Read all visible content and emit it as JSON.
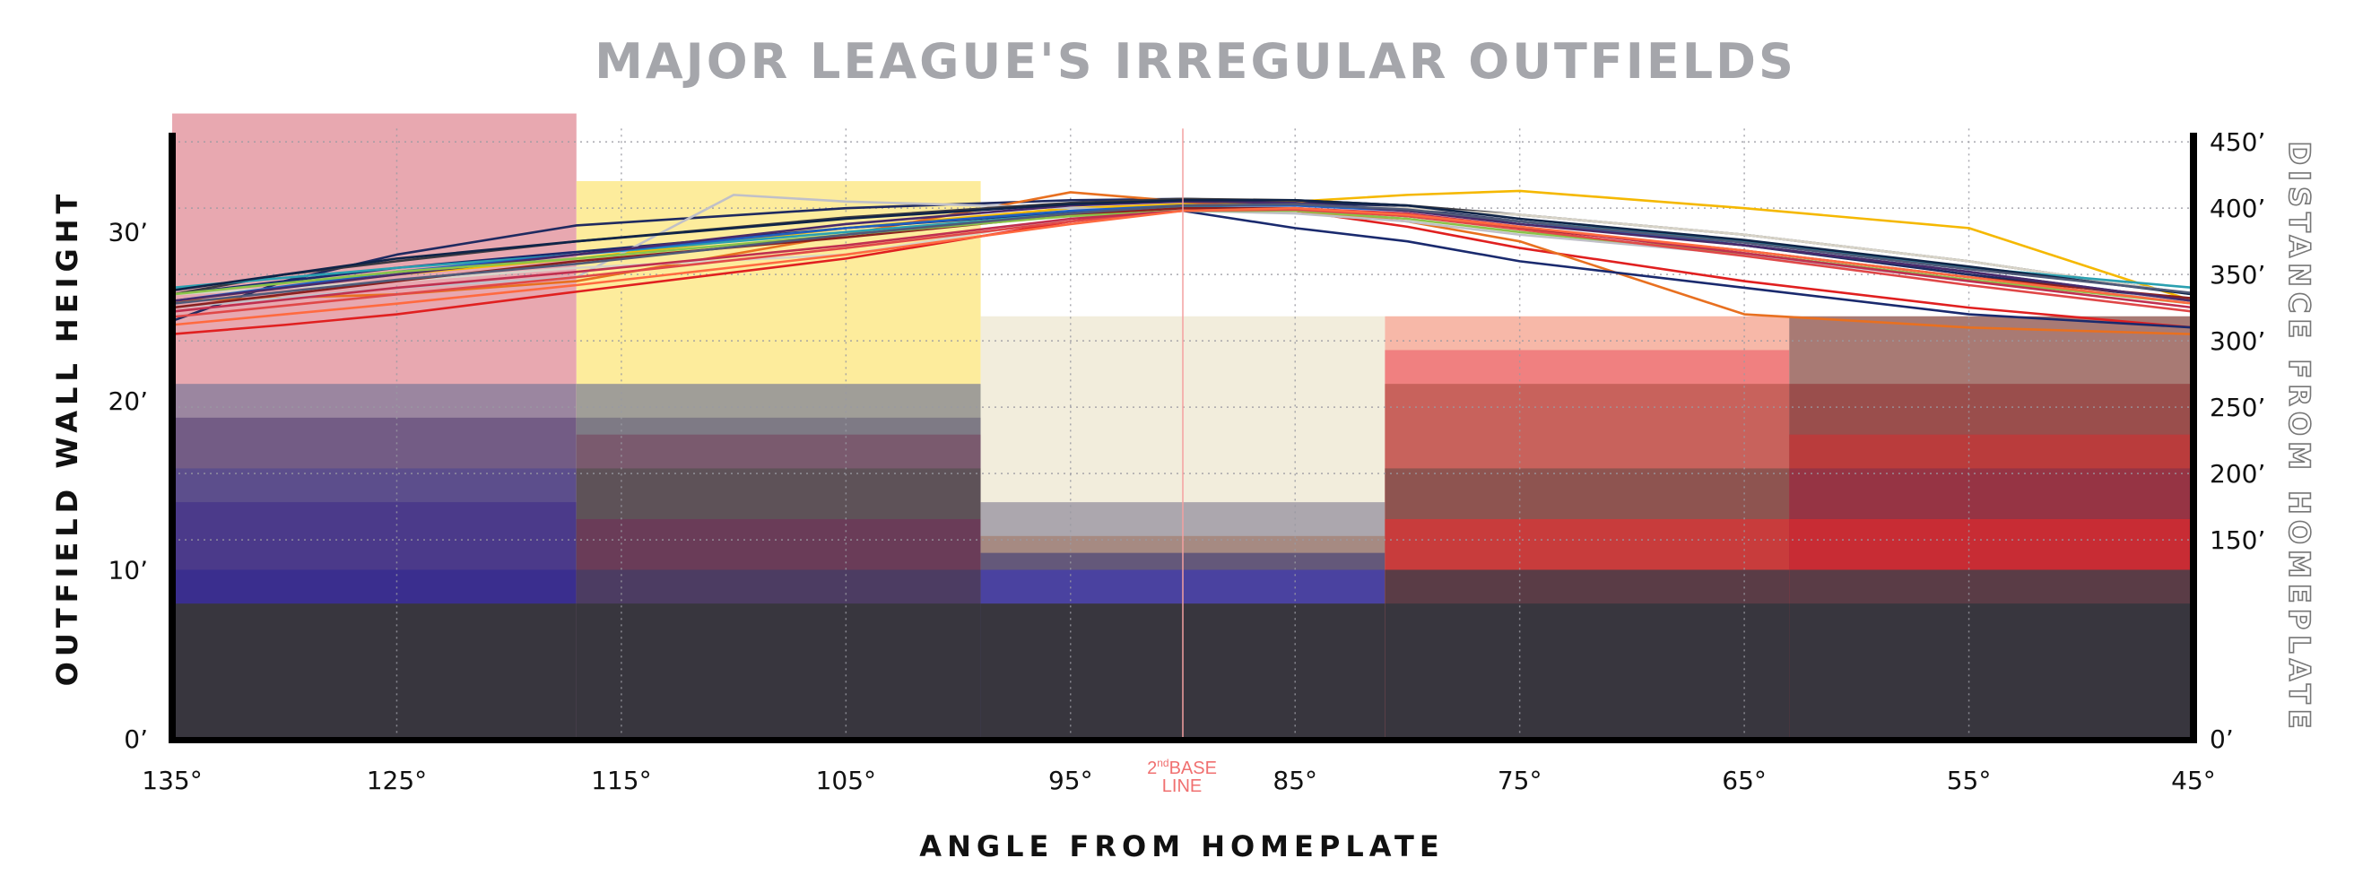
{
  "chart_data": {
    "type": "line",
    "title": "MAJOR LEAGUE'S IRREGULAR OUTFIELDS",
    "xlabel": "ANGLE FROM HOMEPLATE",
    "ylabel": "OUTFIELD WALL HEIGHT",
    "y2label": "DISTANCE FROM HOMEPLATE",
    "annotation": {
      "line1": "2nd BASE",
      "line2": "LINE"
    },
    "xlim": [
      135,
      45
    ],
    "ylim": [
      0,
      36.5
    ],
    "y2lim": [
      0,
      465
    ],
    "x_ticks": [
      135,
      125,
      115,
      105,
      95,
      85,
      75,
      65,
      55,
      45
    ],
    "x_tick_labels": [
      "135°",
      "125°",
      "115°",
      "105°",
      "95°",
      "85°",
      "75°",
      "65°",
      "55°",
      "45°"
    ],
    "y_ticks": [
      0,
      10,
      20,
      30
    ],
    "y_tick_labels": [
      "0’",
      "10’",
      "20’",
      "30’"
    ],
    "y2_ticks": [
      0,
      150,
      200,
      250,
      300,
      350,
      400,
      450
    ],
    "y2_tick_labels": [
      "0’",
      "150’",
      "200’",
      "250’",
      "300’",
      "350’",
      "400’",
      "450’"
    ],
    "grid": true,
    "wall_sections": [
      {
        "from": 135,
        "to": 117,
        "layers": [
          {
            "height": 37,
            "color": "#e8a8b0"
          },
          {
            "height": 21,
            "color": "#9b86a0"
          },
          {
            "height": 19,
            "color": "#735c85"
          },
          {
            "height": 16,
            "color": "#5c4e8c"
          },
          {
            "height": 14,
            "color": "#4b3a8a"
          },
          {
            "height": 10,
            "color": "#3a2e8e"
          },
          {
            "height": 8,
            "color": "#38363e"
          }
        ]
      },
      {
        "from": 117,
        "to": 99,
        "layers": [
          {
            "height": 33,
            "color": "#fdec9c"
          },
          {
            "height": 21,
            "color": "#a09e98"
          },
          {
            "height": 19,
            "color": "#7e7a85"
          },
          {
            "height": 18,
            "color": "#7a5a6e"
          },
          {
            "height": 16,
            "color": "#5e5258"
          },
          {
            "height": 13,
            "color": "#6a3c58"
          },
          {
            "height": 10,
            "color": "#4c3c62"
          },
          {
            "height": 8,
            "color": "#38363e"
          }
        ]
      },
      {
        "from": 99,
        "to": 81,
        "layers": [
          {
            "height": 25,
            "color": "#f2eddc"
          },
          {
            "height": 14,
            "color": "#aca7ae"
          },
          {
            "height": 12,
            "color": "#a68a82"
          },
          {
            "height": 11,
            "color": "#64587a"
          },
          {
            "height": 10,
            "color": "#4a42a0"
          },
          {
            "height": 8,
            "color": "#38363e"
          }
        ]
      },
      {
        "from": 81,
        "to": 63,
        "layers": [
          {
            "height": 25,
            "color": "#f7b8a8"
          },
          {
            "height": 23,
            "color": "#f08080"
          },
          {
            "height": 21,
            "color": "#c8625c"
          },
          {
            "height": 16,
            "color": "#8e5450"
          },
          {
            "height": 13,
            "color": "#c83c3c"
          },
          {
            "height": 10,
            "color": "#5a3c46"
          },
          {
            "height": 8,
            "color": "#38363e"
          }
        ]
      },
      {
        "from": 63,
        "to": 45,
        "layers": [
          {
            "height": 25,
            "color": "#a87a74"
          },
          {
            "height": 21,
            "color": "#9a4e4c"
          },
          {
            "height": 18,
            "color": "#ba3c3c"
          },
          {
            "height": 16,
            "color": "#963444"
          },
          {
            "height": 13,
            "color": "#c82c34"
          },
          {
            "height": 10,
            "color": "#5a3c46"
          },
          {
            "height": 8,
            "color": "#38363e"
          }
        ]
      }
    ],
    "series": [
      {
        "color": "#1f2a60",
        "x": [
          135,
          130,
          125,
          117,
          105,
          95,
          90,
          85,
          80,
          75,
          65,
          55,
          45
        ],
        "y": [
          315,
          345,
          365,
          387,
          400,
          406,
          407,
          405,
          400,
          390,
          372,
          350,
          330
        ]
      },
      {
        "color": "#e02020",
        "x": [
          135,
          130,
          125,
          117,
          105,
          95,
          90,
          85,
          80,
          75,
          65,
          55,
          45
        ],
        "y": [
          305,
          312,
          320,
          337,
          362,
          390,
          400,
          398,
          386,
          370,
          345,
          325,
          310
        ]
      },
      {
        "color": "#f5b800",
        "x": [
          135,
          125,
          117,
          105,
          95,
          90,
          85,
          80,
          75,
          65,
          55,
          45
        ],
        "y": [
          330,
          350,
          362,
          385,
          400,
          403,
          405,
          410,
          413,
          400,
          385,
          330
        ]
      },
      {
        "color": "#e87020",
        "x": [
          135,
          125,
          117,
          105,
          95,
          90,
          85,
          80,
          75,
          65,
          55,
          45
        ],
        "y": [
          330,
          335,
          345,
          380,
          412,
          405,
          398,
          390,
          375,
          320,
          310,
          305
        ]
      },
      {
        "color": "#1a2a6e",
        "x": [
          135,
          125,
          117,
          105,
          95,
          90,
          85,
          80,
          75,
          65,
          55,
          45
        ],
        "y": [
          335,
          355,
          367,
          385,
          397,
          398,
          385,
          375,
          360,
          340,
          320,
          310
        ]
      },
      {
        "color": "#c0c0c8",
        "x": [
          135,
          125,
          117,
          110,
          105,
          95,
          90,
          85,
          80,
          75,
          65,
          55,
          45
        ],
        "y": [
          325,
          340,
          348,
          410,
          405,
          400,
          398,
          396,
          390,
          380,
          365,
          345,
          330
        ]
      },
      {
        "color": "#3a3a42",
        "x": [
          135,
          130,
          125,
          117,
          105,
          95,
          90,
          85,
          80,
          75,
          65,
          55,
          45
        ],
        "y": [
          335,
          350,
          360,
          375,
          393,
          404,
          407,
          406,
          402,
          395,
          380,
          360,
          335
        ]
      },
      {
        "color": "#d8d4c8",
        "x": [
          135,
          125,
          117,
          105,
          95,
          90,
          85,
          80,
          75,
          65,
          55,
          45
        ],
        "y": [
          335,
          345,
          355,
          365,
          392,
          400,
          402,
          400,
          395,
          380,
          360,
          335
        ]
      },
      {
        "color": "#2aa0b0",
        "x": [
          135,
          125,
          117,
          105,
          95,
          90,
          85,
          80,
          75,
          65,
          55,
          45
        ],
        "y": [
          340,
          355,
          365,
          382,
          396,
          401,
          403,
          398,
          390,
          375,
          355,
          340
        ]
      },
      {
        "color": "#2060c0",
        "x": [
          135,
          125,
          117,
          105,
          95,
          90,
          85,
          80,
          75,
          65,
          55,
          45
        ],
        "y": [
          330,
          352,
          365,
          385,
          398,
          402,
          402,
          398,
          390,
          372,
          352,
          330
        ]
      },
      {
        "color": "#8a2020",
        "x": [
          135,
          125,
          117,
          105,
          95,
          90,
          85,
          80,
          75,
          65,
          55,
          45
        ],
        "y": [
          325,
          345,
          360,
          378,
          395,
          400,
          400,
          394,
          385,
          368,
          348,
          332
        ]
      },
      {
        "color": "#4a2a6a",
        "x": [
          135,
          125,
          117,
          105,
          95,
          90,
          85,
          80,
          75,
          65,
          55,
          45
        ],
        "y": [
          330,
          350,
          365,
          388,
          402,
          405,
          404,
          398,
          388,
          372,
          352,
          330
        ]
      },
      {
        "color": "#8bc34a",
        "x": [
          135,
          125,
          117,
          105,
          95,
          90,
          85,
          80,
          75,
          65,
          55,
          45
        ],
        "y": [
          335,
          352,
          362,
          380,
          394,
          398,
          398,
          392,
          382,
          366,
          346,
          328
        ]
      },
      {
        "color": "#e04848",
        "x": [
          135,
          125,
          117,
          105,
          95,
          90,
          85,
          80,
          75,
          65,
          55,
          45
        ],
        "y": [
          318,
          335,
          348,
          370,
          390,
          398,
          399,
          394,
          384,
          364,
          342,
          322
        ]
      },
      {
        "color": "#c03050",
        "x": [
          135,
          125,
          117,
          105,
          95,
          90,
          85,
          80,
          75,
          65,
          55,
          45
        ],
        "y": [
          322,
          340,
          352,
          372,
          392,
          398,
          400,
          396,
          386,
          366,
          345,
          325
        ]
      },
      {
        "color": "#0f2448",
        "x": [
          135,
          125,
          117,
          105,
          95,
          90,
          85,
          80,
          75,
          65,
          55,
          45
        ],
        "y": [
          338,
          362,
          375,
          392,
          403,
          406,
          406,
          402,
          392,
          376,
          356,
          335
        ]
      },
      {
        "color": "#ff6a40",
        "x": [
          135,
          125,
          117,
          105,
          95,
          90,
          85,
          80,
          75,
          65,
          55,
          45
        ],
        "y": [
          312,
          328,
          342,
          365,
          388,
          398,
          400,
          395,
          386,
          368,
          348,
          328
        ]
      },
      {
        "color": "#505a78",
        "x": [
          135,
          125,
          117,
          105,
          95,
          90,
          85,
          80,
          75,
          65,
          55,
          45
        ],
        "y": [
          328,
          346,
          358,
          380,
          396,
          402,
          403,
          399,
          390,
          374,
          354,
          336
        ]
      }
    ]
  }
}
